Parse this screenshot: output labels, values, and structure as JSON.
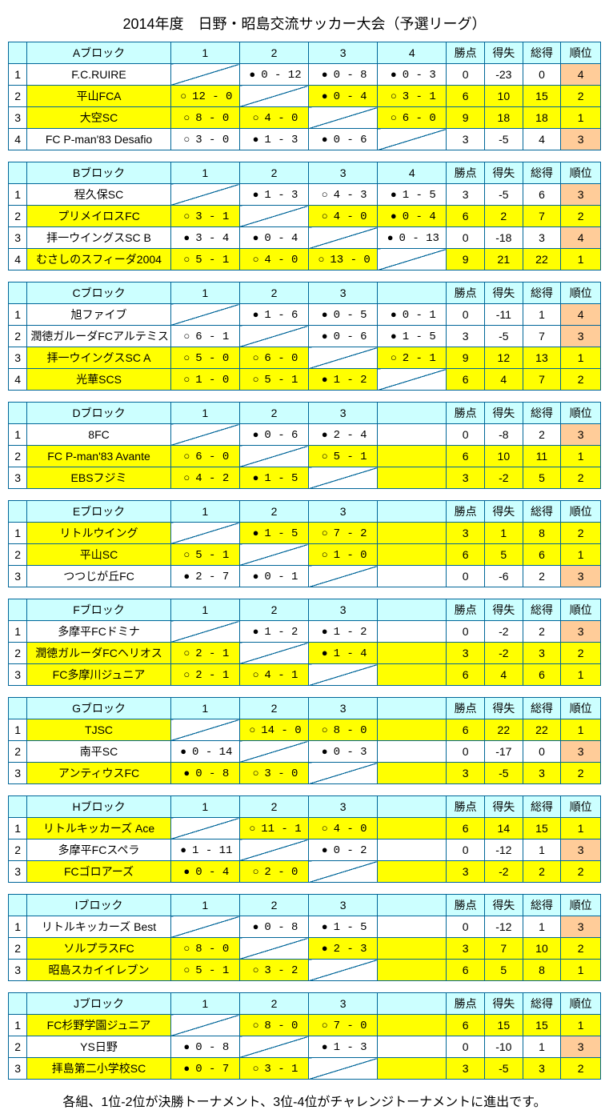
{
  "title": "2014年度　日野・昭島交流サッカー大会（予選リーグ）",
  "footer": "各組、1位-2位が決勝トーナメント、3位-4位がチャレンジトーナメントに進出です。",
  "headers": {
    "pts": "勝点",
    "gd": "得失",
    "gt": "総得",
    "rank": "順位"
  },
  "blocks": [
    {
      "name": "Aブロック",
      "cols": 4,
      "teams": [
        {
          "n": "1",
          "name": "F.C.RUIRE",
          "hl": false,
          "cells": [
            null,
            {
              "m": "L",
              "s": "0 - 12"
            },
            {
              "m": "L",
              "s": "0 - 8"
            },
            {
              "m": "L",
              "s": "0 - 3"
            }
          ],
          "pts": "0",
          "gd": "-23",
          "gt": "0",
          "rank": "4",
          "rc": "orange"
        },
        {
          "n": "2",
          "name": "平山FCA",
          "hl": true,
          "cells": [
            {
              "m": "W",
              "s": "12 - 0"
            },
            null,
            {
              "m": "L",
              "s": "0 - 4"
            },
            {
              "m": "W",
              "s": "3 - 1"
            }
          ],
          "pts": "6",
          "gd": "10",
          "gt": "15",
          "rank": "2",
          "rc": "yellow"
        },
        {
          "n": "3",
          "name": "大空SC",
          "hl": true,
          "cells": [
            {
              "m": "W",
              "s": "8 - 0"
            },
            {
              "m": "W",
              "s": "4 - 0"
            },
            null,
            {
              "m": "W",
              "s": "6 - 0"
            }
          ],
          "pts": "9",
          "gd": "18",
          "gt": "18",
          "rank": "1",
          "rc": "yellow"
        },
        {
          "n": "4",
          "name": "FC P-man'83  Desafio",
          "hl": false,
          "cells": [
            {
              "m": "W",
              "s": "3 - 0"
            },
            {
              "m": "L",
              "s": "1 - 3"
            },
            {
              "m": "L",
              "s": "0 - 6"
            },
            null
          ],
          "pts": "3",
          "gd": "-5",
          "gt": "4",
          "rank": "3",
          "rc": "orange"
        }
      ]
    },
    {
      "name": "Bブロック",
      "cols": 4,
      "teams": [
        {
          "n": "1",
          "name": "程久保SC",
          "hl": false,
          "cells": [
            null,
            {
              "m": "L",
              "s": "1 - 3"
            },
            {
              "m": "W",
              "s": "4 - 3"
            },
            {
              "m": "L",
              "s": "1 - 5"
            }
          ],
          "pts": "3",
          "gd": "-5",
          "gt": "6",
          "rank": "3",
          "rc": "orange"
        },
        {
          "n": "2",
          "name": "プリメイロスFC",
          "hl": true,
          "cells": [
            {
              "m": "W",
              "s": "3 - 1"
            },
            null,
            {
              "m": "W",
              "s": "4 - 0"
            },
            {
              "m": "L",
              "s": "0 - 4"
            }
          ],
          "pts": "6",
          "gd": "2",
          "gt": "7",
          "rank": "2",
          "rc": "yellow"
        },
        {
          "n": "3",
          "name": "拝一ウイングスSC  B",
          "hl": false,
          "cells": [
            {
              "m": "L",
              "s": "3 - 4"
            },
            {
              "m": "L",
              "s": "0 - 4"
            },
            null,
            {
              "m": "L",
              "s": "0 - 13"
            }
          ],
          "pts": "0",
          "gd": "-18",
          "gt": "3",
          "rank": "4",
          "rc": "orange"
        },
        {
          "n": "4",
          "name": "むさしのスフィーダ2004",
          "hl": true,
          "cells": [
            {
              "m": "W",
              "s": "5 - 1"
            },
            {
              "m": "W",
              "s": "4 - 0"
            },
            {
              "m": "W",
              "s": "13 - 0"
            },
            null
          ],
          "pts": "9",
          "gd": "21",
          "gt": "22",
          "rank": "1",
          "rc": "yellow"
        }
      ]
    },
    {
      "name": "Cブロック",
      "cols": 4,
      "colLabels": [
        "1",
        "2",
        "3",
        ""
      ],
      "extraGap": true,
      "teams": [
        {
          "n": "1",
          "name": "旭ファイブ",
          "hl": false,
          "cells": [
            null,
            {
              "m": "L",
              "s": "1 - 6"
            },
            {
              "m": "L",
              "s": "0 - 5"
            },
            {
              "m": "L",
              "s": "0 - 1"
            }
          ],
          "pts": "0",
          "gd": "-11",
          "gt": "1",
          "rank": "4",
          "rc": "orange"
        },
        {
          "n": "2",
          "name": "潤徳ガルーダFCアルテミス",
          "hl": false,
          "cells": [
            {
              "m": "W",
              "s": "6 - 1"
            },
            null,
            {
              "m": "L",
              "s": "0 - 6"
            },
            {
              "m": "L",
              "s": "1 - 5"
            }
          ],
          "pts": "3",
          "gd": "-5",
          "gt": "7",
          "rank": "3",
          "rc": "orange"
        },
        {
          "n": "3",
          "name": "拝一ウイングスSC  A",
          "hl": true,
          "cells": [
            {
              "m": "W",
              "s": "5 - 0"
            },
            {
              "m": "W",
              "s": "6 - 0"
            },
            null,
            {
              "m": "W",
              "s": "2 - 1"
            }
          ],
          "pts": "9",
          "gd": "12",
          "gt": "13",
          "rank": "1",
          "rc": "yellow"
        },
        {
          "n": "4",
          "name": "光華SCS",
          "hl": true,
          "cells": [
            {
              "m": "W",
              "s": "1 - 0"
            },
            {
              "m": "W",
              "s": "5 - 1"
            },
            {
              "m": "L",
              "s": "1 - 2"
            },
            null
          ],
          "pts": "6",
          "gd": "4",
          "gt": "7",
          "rank": "2",
          "rc": "yellow"
        }
      ]
    },
    {
      "name": "Dブロック",
      "cols": 4,
      "colLabels": [
        "1",
        "2",
        "3",
        ""
      ],
      "teams": [
        {
          "n": "1",
          "name": "8FC",
          "hl": false,
          "cells": [
            null,
            {
              "m": "L",
              "s": "0 - 6"
            },
            {
              "m": "L",
              "s": "2 - 4"
            },
            {
              "blank": true
            }
          ],
          "pts": "0",
          "gd": "-8",
          "gt": "2",
          "rank": "3",
          "rc": "orange"
        },
        {
          "n": "2",
          "name": "FC P-man'83  Avante",
          "hl": true,
          "cells": [
            {
              "m": "W",
              "s": "6 - 0"
            },
            null,
            {
              "m": "W",
              "s": "5 - 1"
            },
            {
              "blank": true,
              "hl": true
            }
          ],
          "pts": "6",
          "gd": "10",
          "gt": "11",
          "rank": "1",
          "rc": "yellow"
        },
        {
          "n": "3",
          "name": "EBSフジミ",
          "hl": true,
          "cells": [
            {
              "m": "W",
              "s": "4 - 2"
            },
            {
              "m": "L",
              "s": "1 - 5"
            },
            null,
            {
              "blank": true,
              "hl": true
            }
          ],
          "pts": "3",
          "gd": "-2",
          "gt": "5",
          "rank": "2",
          "rc": "yellow"
        }
      ]
    },
    {
      "name": "Eブロック",
      "cols": 4,
      "colLabels": [
        "1",
        "2",
        "3",
        ""
      ],
      "teams": [
        {
          "n": "1",
          "name": "リトルウイング",
          "hl": true,
          "cells": [
            null,
            {
              "m": "L",
              "s": "1 - 5"
            },
            {
              "m": "W",
              "s": "7 - 2"
            },
            {
              "blank": true,
              "hl": true
            }
          ],
          "pts": "3",
          "gd": "1",
          "gt": "8",
          "rank": "2",
          "rc": "yellow"
        },
        {
          "n": "2",
          "name": "平山SC",
          "hl": true,
          "cells": [
            {
              "m": "W",
              "s": "5 - 1"
            },
            null,
            {
              "m": "W",
              "s": "1 - 0"
            },
            {
              "blank": true,
              "hl": true
            }
          ],
          "pts": "6",
          "gd": "5",
          "gt": "6",
          "rank": "1",
          "rc": "yellow"
        },
        {
          "n": "3",
          "name": "つつじが丘FC",
          "hl": false,
          "cells": [
            {
              "m": "L",
              "s": "2 - 7"
            },
            {
              "m": "L",
              "s": "0 - 1"
            },
            null,
            {
              "blank": true
            }
          ],
          "pts": "0",
          "gd": "-6",
          "gt": "2",
          "rank": "3",
          "rc": "orange"
        }
      ]
    },
    {
      "name": "Fブロック",
      "cols": 4,
      "colLabels": [
        "1",
        "2",
        "3",
        ""
      ],
      "teams": [
        {
          "n": "1",
          "name": "多摩平FCドミナ",
          "hl": false,
          "cells": [
            null,
            {
              "m": "L",
              "s": "1 - 2"
            },
            {
              "m": "L",
              "s": "1 - 2"
            },
            {
              "blank": true
            }
          ],
          "pts": "0",
          "gd": "-2",
          "gt": "2",
          "rank": "3",
          "rc": "orange"
        },
        {
          "n": "2",
          "name": "潤徳ガルーダFCヘリオス",
          "hl": true,
          "cells": [
            {
              "m": "W",
              "s": "2 - 1"
            },
            null,
            {
              "m": "L",
              "s": "1 - 4"
            },
            {
              "blank": true,
              "hl": true
            }
          ],
          "pts": "3",
          "gd": "-2",
          "gt": "3",
          "rank": "2",
          "rc": "yellow"
        },
        {
          "n": "3",
          "name": "FC多摩川ジュニア",
          "hl": true,
          "cells": [
            {
              "m": "W",
              "s": "2 - 1"
            },
            {
              "m": "W",
              "s": "4 - 1"
            },
            null,
            {
              "blank": true,
              "hl": true
            }
          ],
          "pts": "6",
          "gd": "4",
          "gt": "6",
          "rank": "1",
          "rc": "yellow"
        }
      ]
    },
    {
      "name": "Gブロック",
      "cols": 4,
      "colLabels": [
        "1",
        "2",
        "3",
        ""
      ],
      "teams": [
        {
          "n": "1",
          "name": "TJSC",
          "hl": true,
          "cells": [
            null,
            {
              "m": "W",
              "s": "14 - 0"
            },
            {
              "m": "W",
              "s": "8 - 0"
            },
            {
              "blank": true,
              "hl": true
            }
          ],
          "pts": "6",
          "gd": "22",
          "gt": "22",
          "rank": "1",
          "rc": "yellow"
        },
        {
          "n": "2",
          "name": "南平SC",
          "hl": false,
          "cells": [
            {
              "m": "L",
              "s": "0 - 14"
            },
            null,
            {
              "m": "L",
              "s": "0 - 3"
            },
            {
              "blank": true
            }
          ],
          "pts": "0",
          "gd": "-17",
          "gt": "0",
          "rank": "3",
          "rc": "orange"
        },
        {
          "n": "3",
          "name": "アンティウスFC",
          "hl": true,
          "cells": [
            {
              "m": "L",
              "s": "0 - 8"
            },
            {
              "m": "W",
              "s": "3 - 0"
            },
            null,
            {
              "blank": true,
              "hl": true
            }
          ],
          "pts": "3",
          "gd": "-5",
          "gt": "3",
          "rank": "2",
          "rc": "yellow"
        }
      ]
    },
    {
      "name": "Hブロック",
      "cols": 4,
      "colLabels": [
        "1",
        "2",
        "3",
        ""
      ],
      "teams": [
        {
          "n": "1",
          "name": "リトルキッカーズ Ace",
          "hl": true,
          "cells": [
            null,
            {
              "m": "W",
              "s": "11 - 1"
            },
            {
              "m": "W",
              "s": "4 - 0"
            },
            {
              "blank": true,
              "hl": true
            }
          ],
          "pts": "6",
          "gd": "14",
          "gt": "15",
          "rank": "1",
          "rc": "yellow"
        },
        {
          "n": "2",
          "name": "多摩平FCスペラ",
          "hl": false,
          "cells": [
            {
              "m": "L",
              "s": "1 - 11"
            },
            null,
            {
              "m": "L",
              "s": "0 - 2"
            },
            {
              "blank": true
            }
          ],
          "pts": "0",
          "gd": "-12",
          "gt": "1",
          "rank": "3",
          "rc": "orange"
        },
        {
          "n": "3",
          "name": "FCゴロアーズ",
          "hl": true,
          "cells": [
            {
              "m": "L",
              "s": "0 - 4"
            },
            {
              "m": "W",
              "s": "2 - 0"
            },
            null,
            {
              "blank": true,
              "hl": true
            }
          ],
          "pts": "3",
          "gd": "-2",
          "gt": "2",
          "rank": "2",
          "rc": "yellow"
        }
      ]
    },
    {
      "name": "Iブロック",
      "cols": 4,
      "colLabels": [
        "1",
        "2",
        "3",
        ""
      ],
      "teams": [
        {
          "n": "1",
          "name": "リトルキッカーズ Best",
          "hl": false,
          "cells": [
            null,
            {
              "m": "L",
              "s": "0 - 8"
            },
            {
              "m": "L",
              "s": "1 - 5"
            },
            {
              "blank": true
            }
          ],
          "pts": "0",
          "gd": "-12",
          "gt": "1",
          "rank": "3",
          "rc": "orange"
        },
        {
          "n": "2",
          "name": "ソルプラスFC",
          "hl": true,
          "cells": [
            {
              "m": "W",
              "s": "8 - 0"
            },
            null,
            {
              "m": "L",
              "s": "2 - 3"
            },
            {
              "blank": true,
              "hl": true
            }
          ],
          "pts": "3",
          "gd": "7",
          "gt": "10",
          "rank": "2",
          "rc": "yellow"
        },
        {
          "n": "3",
          "name": "昭島スカイイレブン",
          "hl": true,
          "cells": [
            {
              "m": "W",
              "s": "5 - 1"
            },
            {
              "m": "W",
              "s": "3 - 2"
            },
            null,
            {
              "blank": true,
              "hl": true
            }
          ],
          "pts": "6",
          "gd": "5",
          "gt": "8",
          "rank": "1",
          "rc": "yellow"
        }
      ]
    },
    {
      "name": "Jブロック",
      "cols": 4,
      "colLabels": [
        "1",
        "2",
        "3",
        ""
      ],
      "teams": [
        {
          "n": "1",
          "name": "FC杉野学園ジュニア",
          "hl": true,
          "cells": [
            null,
            {
              "m": "W",
              "s": "8 - 0"
            },
            {
              "m": "W",
              "s": "7 - 0"
            },
            {
              "blank": true,
              "hl": true
            }
          ],
          "pts": "6",
          "gd": "15",
          "gt": "15",
          "rank": "1",
          "rc": "yellow"
        },
        {
          "n": "2",
          "name": "YS日野",
          "hl": false,
          "cells": [
            {
              "m": "L",
              "s": "0 - 8"
            },
            null,
            {
              "m": "L",
              "s": "1 - 3"
            },
            {
              "blank": true
            }
          ],
          "pts": "0",
          "gd": "-10",
          "gt": "1",
          "rank": "3",
          "rc": "orange"
        },
        {
          "n": "3",
          "name": "拝島第二小学校SC",
          "hl": true,
          "cells": [
            {
              "m": "L",
              "s": "0 - 7"
            },
            {
              "m": "W",
              "s": "3 - 1"
            },
            null,
            {
              "blank": true,
              "hl": true
            }
          ],
          "pts": "3",
          "gd": "-5",
          "gt": "3",
          "rank": "2",
          "rc": "yellow"
        }
      ]
    }
  ]
}
